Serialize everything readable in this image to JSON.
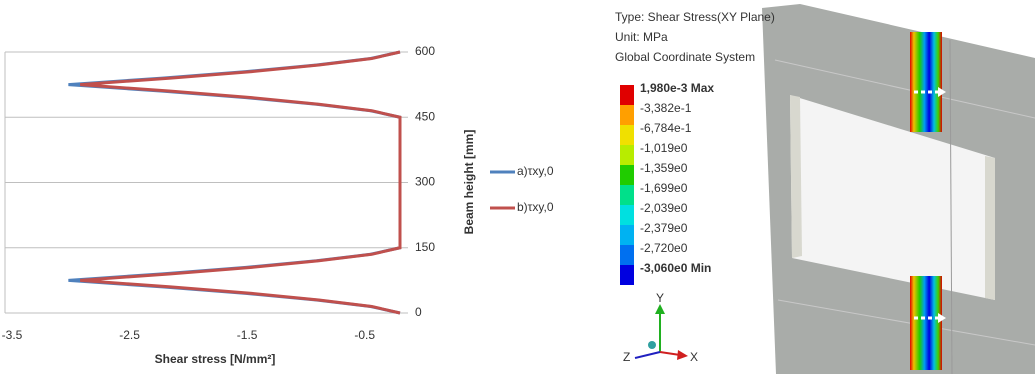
{
  "chart_data": {
    "type": "line",
    "xlabel": "Shear  stress [N/mm²]",
    "ylabel": "Beam height [mm]",
    "y": [
      0,
      15,
      30,
      45,
      60,
      75,
      90,
      105,
      120,
      135,
      150,
      450,
      465,
      480,
      495,
      510,
      525,
      540,
      555,
      570,
      585,
      600
    ],
    "series": [
      {
        "name": "a)τxy,0",
        "color": "#4f81bd",
        "values": [
          -0.2,
          -0.45,
          -0.91,
          -1.51,
          -2.22,
          -3.02,
          -2.22,
          -1.51,
          -0.91,
          -0.45,
          -0.2,
          -0.2,
          -0.45,
          -0.91,
          -1.51,
          -2.22,
          -3.02,
          -2.22,
          -1.51,
          -0.91,
          -0.45,
          -0.2
        ]
      },
      {
        "name": "b)τxy,0",
        "color": "#c0504d",
        "values": [
          -0.2,
          -0.44,
          -0.89,
          -1.46,
          -2.15,
          -2.92,
          -2.15,
          -1.46,
          -0.89,
          -0.44,
          -0.2,
          -0.2,
          -0.44,
          -0.89,
          -1.46,
          -2.15,
          -2.92,
          -2.15,
          -1.46,
          -0.89,
          -0.44,
          -0.2
        ]
      }
    ],
    "xlim": [
      -3.5,
      -0.2
    ],
    "xticks": [
      -3.5,
      -2.5,
      -1.5,
      -0.5
    ],
    "ylim": [
      0,
      600
    ],
    "yticks": [
      0,
      150,
      300,
      450,
      600
    ],
    "grid": true,
    "legend": "right"
  },
  "fem_legend": {
    "lines": [
      "Type: Shear Stress(XY Plane)",
      "Unit: MPa",
      "Global Coordinate System"
    ],
    "labels": [
      "1,980e-3 Max",
      "-3,382e-1",
      "-6,784e-1",
      "-1,019e0",
      "-1,359e0",
      "-1,699e0",
      "-2,039e0",
      "-2,379e0",
      "-2,720e0",
      "-3,060e0 Min"
    ],
    "colors": [
      "#e00000",
      "#ff9f00",
      "#f0e000",
      "#b8ec00",
      "#20cc00",
      "#00e08a",
      "#00e0e0",
      "#00b2f2",
      "#0070f0",
      "#0000e0"
    ],
    "axes": [
      "Y",
      "Z",
      "X"
    ]
  }
}
